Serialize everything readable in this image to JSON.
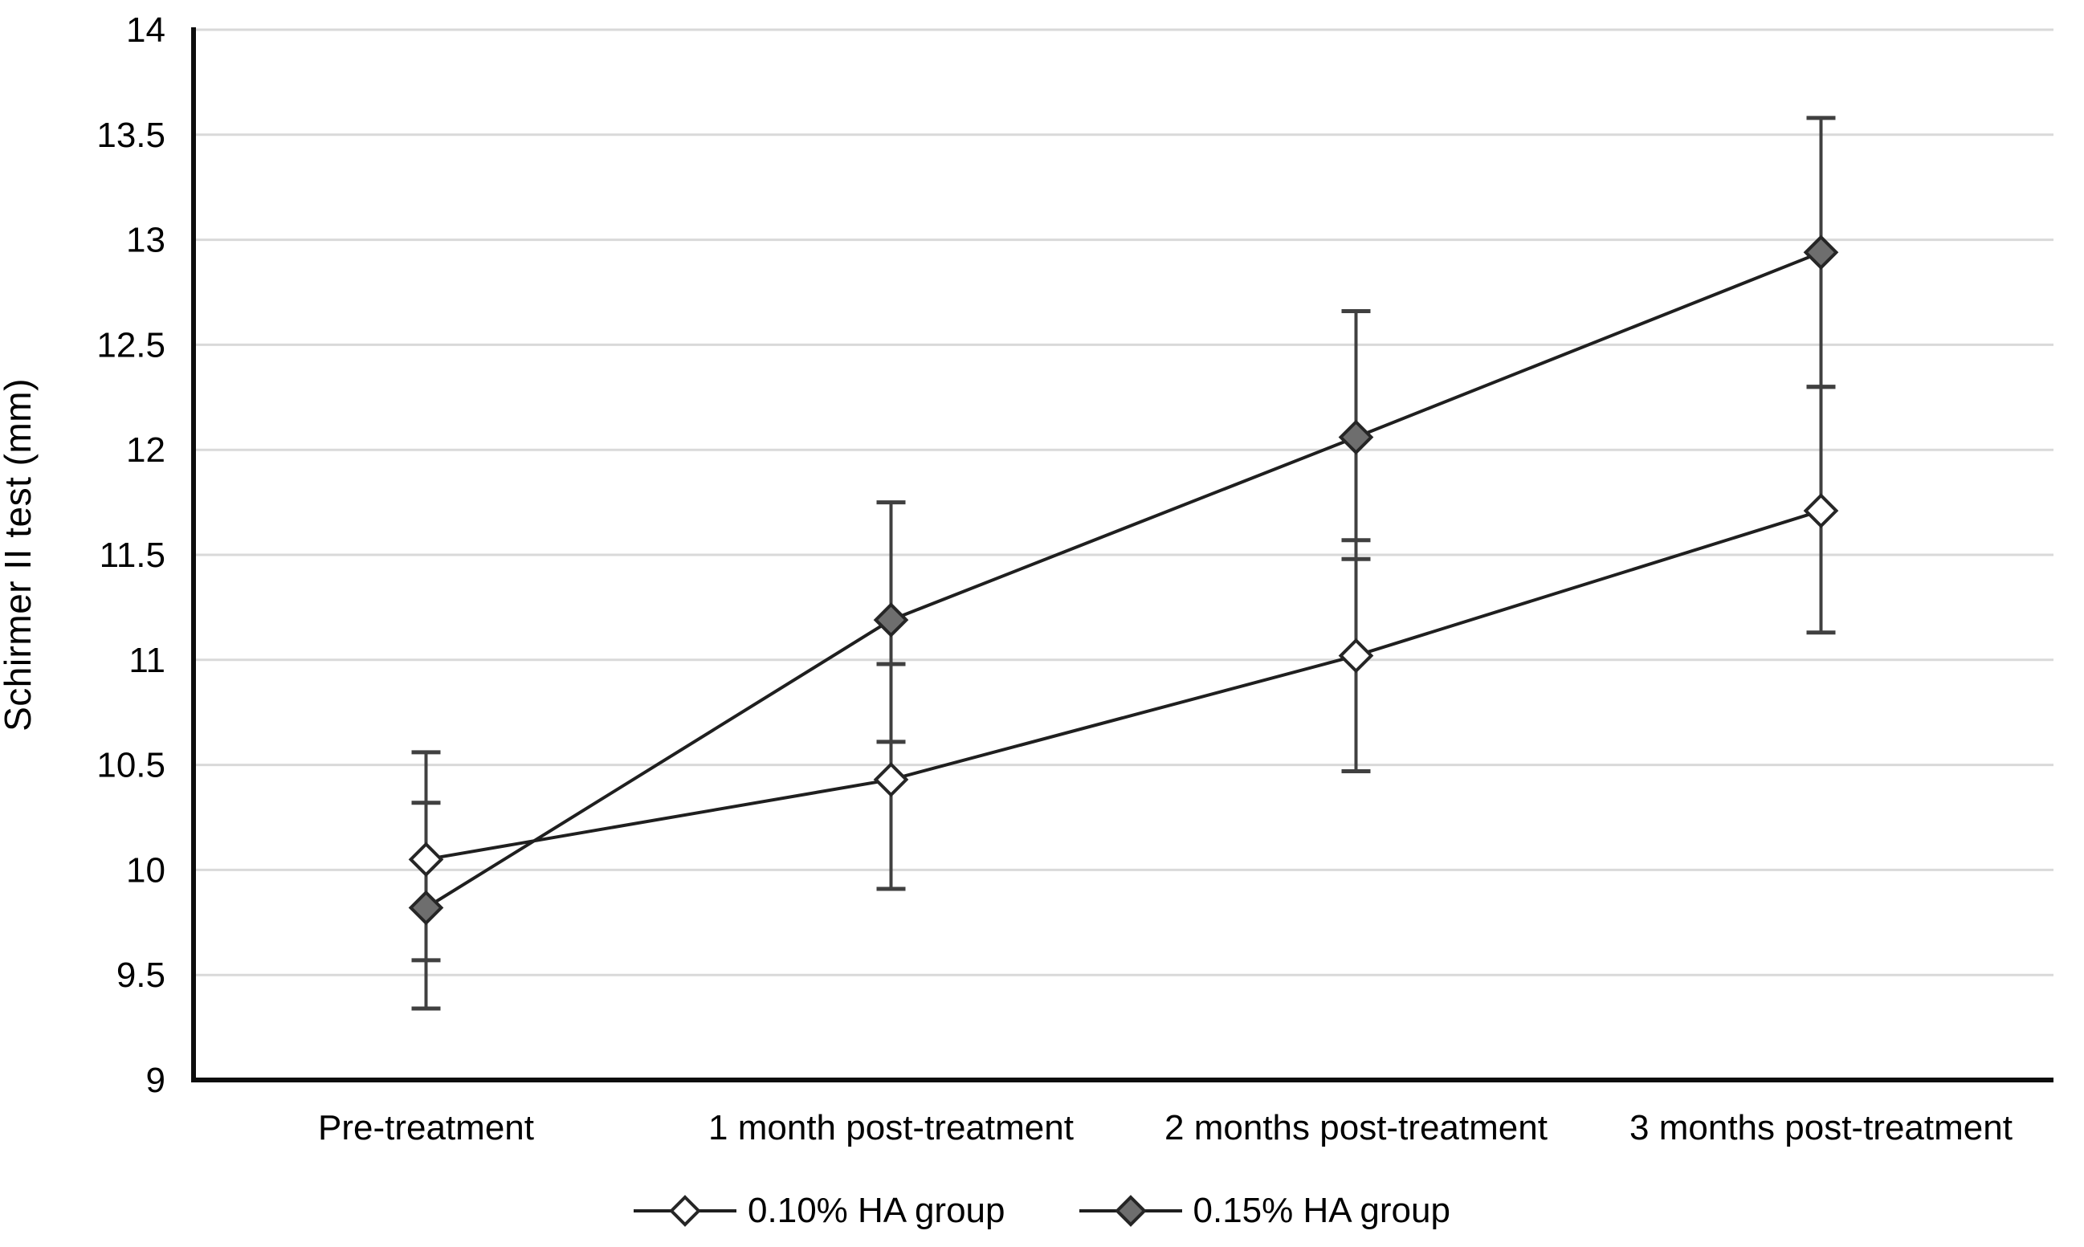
{
  "chart_data": {
    "type": "line",
    "title": "",
    "xlabel": "",
    "ylabel": "Schirmer II test (mm)",
    "ylim": [
      9,
      14
    ],
    "ytick_step": 0.5,
    "ytick_labels": [
      "9",
      "9.5",
      "10",
      "10.5",
      "11",
      "11.5",
      "12",
      "12.5",
      "13",
      "13.5",
      "14"
    ],
    "grid": "horizontal-only",
    "legend_position": "bottom-center",
    "categories": [
      "Pre-treatment",
      "1 month post-treatment",
      "2 months post-treatment",
      "3 months post-treatment"
    ],
    "series": [
      {
        "name": "0.10% HA group",
        "marker": "open-diamond",
        "values": [
          10.05,
          10.43,
          11.02,
          11.71
        ],
        "error_low": [
          9.57,
          9.91,
          10.47,
          11.13
        ],
        "error_high": [
          10.56,
          10.98,
          11.57,
          12.3
        ]
      },
      {
        "name": "0.15% HA group",
        "marker": "filled-diamond",
        "values": [
          9.82,
          11.19,
          12.06,
          12.94
        ],
        "error_low": [
          9.34,
          10.61,
          11.48,
          12.3
        ],
        "error_high": [
          10.32,
          11.75,
          12.66,
          13.58
        ]
      }
    ],
    "colors": {
      "series_line": "#1f1f1f",
      "marker_stroke": "#262626",
      "marker_fill_open": "#ffffff",
      "marker_fill_filled": "#6e6e6e",
      "error_bar": "#404040",
      "gridline": "#d9d9d9",
      "axis": "#0d0d0d",
      "text": "#000000"
    }
  }
}
